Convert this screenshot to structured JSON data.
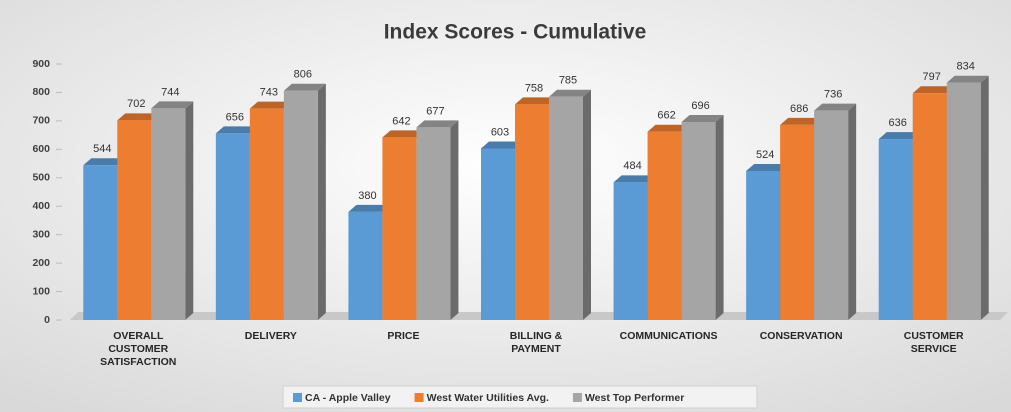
{
  "chart_data": {
    "type": "bar3d",
    "title": "Index Scores - Cumulative",
    "categories": [
      "OVERALL CUSTOMER SATISFACTION",
      "DELIVERY",
      "PRICE",
      "BILLING & PAYMENT",
      "COMMUNICATIONS",
      "CONSERVATION",
      "CUSTOMER SERVICE"
    ],
    "series": [
      {
        "name": "CA - Apple Valley",
        "color": "#5b9bd5",
        "values": [
          544,
          656,
          380,
          603,
          484,
          524,
          636
        ]
      },
      {
        "name": "West Water Utilities Avg.",
        "color": "#ed7d31",
        "values": [
          702,
          743,
          642,
          758,
          662,
          686,
          797
        ]
      },
      {
        "name": "West Top Performer",
        "color": "#a5a5a5",
        "values": [
          744,
          806,
          677,
          785,
          696,
          736,
          834
        ]
      }
    ],
    "ylim": [
      0,
      900
    ],
    "yticks": [
      0,
      100,
      200,
      300,
      400,
      500,
      600,
      700,
      800,
      900
    ],
    "legend": "bottom"
  }
}
